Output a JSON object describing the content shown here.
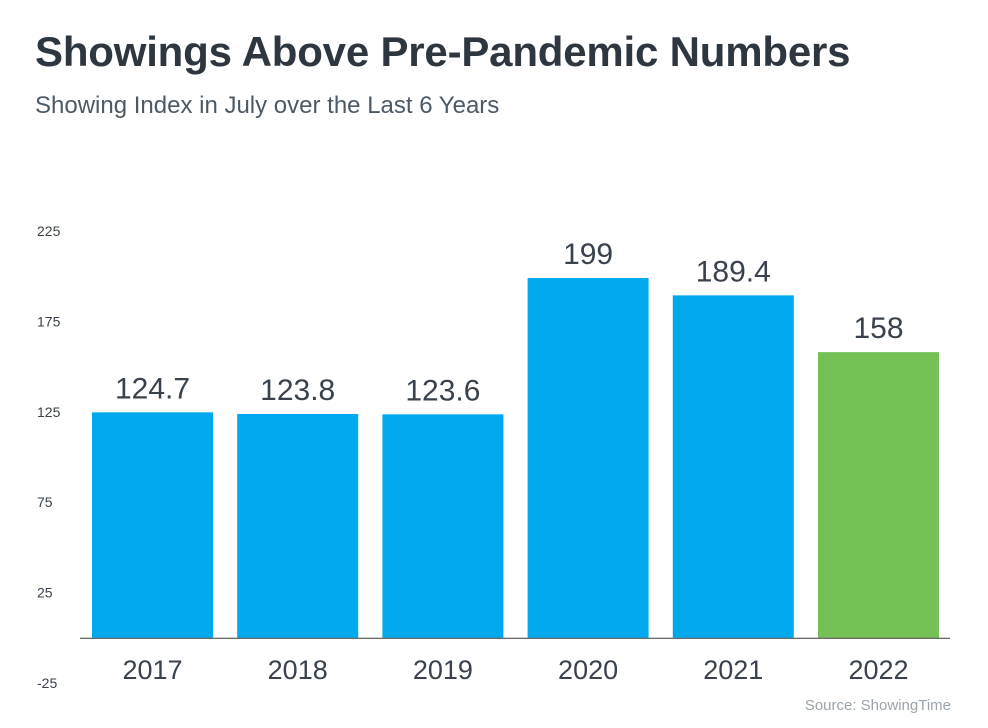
{
  "chart_data": {
    "type": "bar",
    "title": "Showings Above Pre-Pandemic Numbers",
    "subtitle": "Showing Index in July over the Last 6 Years",
    "categories": [
      "2017",
      "2018",
      "2019",
      "2020",
      "2021",
      "2022"
    ],
    "values": [
      124.7,
      123.8,
      123.6,
      199,
      189.4,
      158
    ],
    "value_labels": [
      "124.7",
      "123.8",
      "123.6",
      "199",
      "189.4",
      "158"
    ],
    "y_ticks": [
      "225",
      "175",
      "125",
      "75",
      "25",
      "-25"
    ],
    "y_tick_values": [
      225,
      175,
      125,
      75,
      25,
      -25
    ],
    "ylim": [
      -25,
      225
    ],
    "baseline": 0,
    "grid": false,
    "bar_colors": [
      "#00a9ee",
      "#00a9ee",
      "#00a9ee",
      "#00a9ee",
      "#00a9ee",
      "#74c156"
    ],
    "source": "Source: ShowingTime"
  }
}
